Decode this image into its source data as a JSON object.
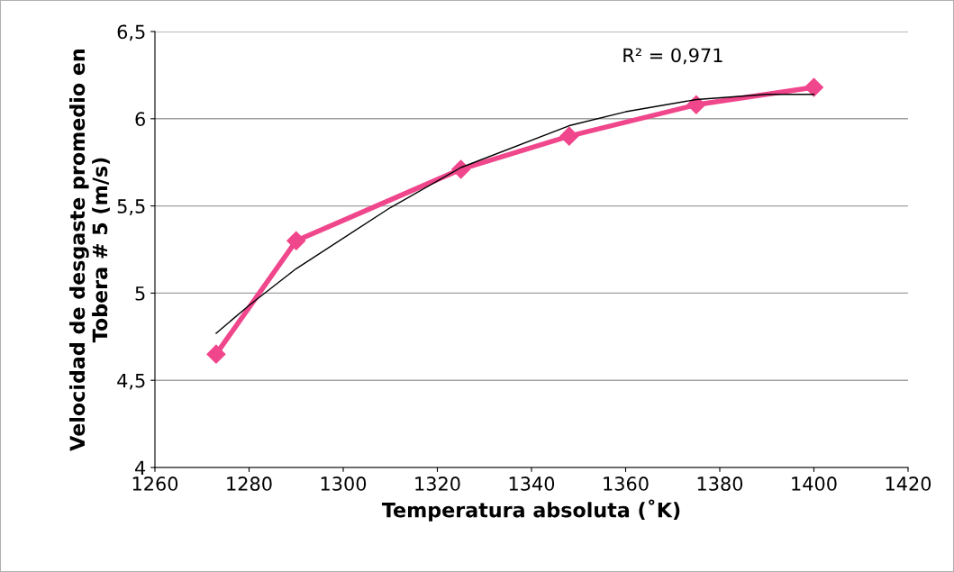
{
  "chart_data": {
    "type": "line",
    "xlabel": "Temperatura absoluta (˚K)",
    "ylabel": "Velocidad de desgaste promedio en\nTobera # 5 (m/s)",
    "annotations": [
      "R² = 0,971"
    ],
    "series": [
      {
        "color": "#f0468c",
        "marker": "diamond",
        "x": [
          1273,
          1290,
          1325,
          1348,
          1375,
          1400
        ],
        "values": [
          4.65,
          5.3,
          5.71,
          5.9,
          6.08,
          6.18
        ]
      },
      {
        "color": "#000000",
        "marker": "none",
        "x": [
          1273,
          1280,
          1290,
          1310,
          1325,
          1348,
          1360,
          1375,
          1390,
          1400
        ],
        "values": [
          4.77,
          4.93,
          5.14,
          5.49,
          5.72,
          5.96,
          6.04,
          6.11,
          6.14,
          6.14
        ]
      }
    ],
    "xlim": [
      1260,
      1420
    ],
    "xticks": [
      1260,
      1280,
      1300,
      1320,
      1340,
      1360,
      1380,
      1400,
      1420
    ],
    "ylim": [
      4,
      6.5
    ],
    "yticks": [
      4,
      {
        "value": 4.5,
        "label": "4,5"
      },
      5,
      {
        "value": 5.5,
        "label": "5,5"
      },
      6,
      {
        "value": 6.5,
        "label": "6,5"
      }
    ],
    "grid": "y",
    "legend": false
  }
}
